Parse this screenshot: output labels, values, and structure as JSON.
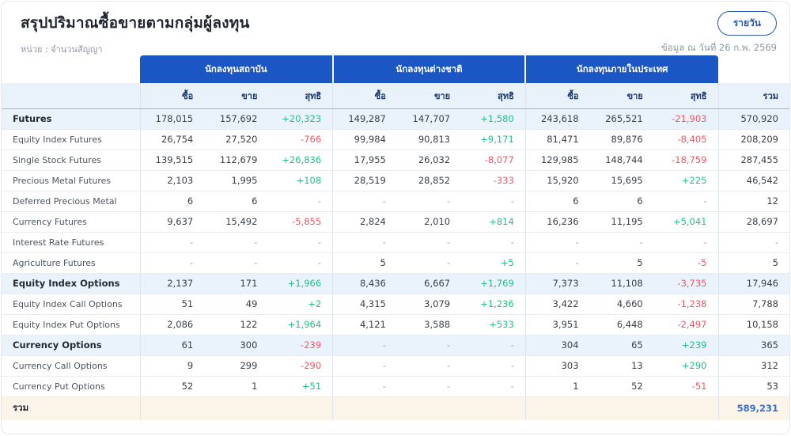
{
  "header": {
    "title": "สรุปปริมาณซื้อขายตามกลุ่มผู้ลงทุน",
    "unit_label": "หน่วย : จำนวนสัญญา",
    "frequency_button": "รายวัน",
    "as_of": "ข้อมูล ณ วันที่ 26 ก.พ. 2569"
  },
  "colors": {
    "header_blue": "#1a57c4",
    "subheader_bg": "#e9f1fb",
    "group_row_bg": "#eaf2fc",
    "total_row_bg": "#faf4e9",
    "positive_green": "#27bd89",
    "negative_red": "#ef5966",
    "total_value_blue": "#3b6cd1",
    "button_blue": "#2a57b0"
  },
  "table": {
    "groups": [
      "นักลงทุนสถาบัน",
      "นักลงทุนต่างชาติ",
      "นักลงทุนภายในประเทศ"
    ],
    "sub_headers": [
      "ซื้อ",
      "ขาย",
      "สุทธิ"
    ],
    "total_header": "รวม",
    "rows": [
      {
        "label": "Futures",
        "type": "group",
        "cells": [
          "178,015",
          "157,692",
          "+20,323",
          "149,287",
          "147,707",
          "+1,580",
          "243,618",
          "265,521",
          "-21,903",
          "570,920"
        ]
      },
      {
        "label": "Equity Index Futures",
        "type": "sub",
        "cells": [
          "26,754",
          "27,520",
          "-766",
          "99,984",
          "90,813",
          "+9,171",
          "81,471",
          "89,876",
          "-8,405",
          "208,209"
        ]
      },
      {
        "label": "Single Stock Futures",
        "type": "sub",
        "cells": [
          "139,515",
          "112,679",
          "+26,836",
          "17,955",
          "26,032",
          "-8,077",
          "129,985",
          "148,744",
          "-18,759",
          "287,455"
        ]
      },
      {
        "label": "Precious Metal Futures",
        "type": "sub",
        "cells": [
          "2,103",
          "1,995",
          "+108",
          "28,519",
          "28,852",
          "-333",
          "15,920",
          "15,695",
          "+225",
          "46,542"
        ]
      },
      {
        "label": "Deferred Precious Metal",
        "type": "sub",
        "cells": [
          "6",
          "6",
          "-",
          "-",
          "-",
          "-",
          "6",
          "6",
          "-",
          "12"
        ]
      },
      {
        "label": "Currency Futures",
        "type": "sub",
        "cells": [
          "9,637",
          "15,492",
          "-5,855",
          "2,824",
          "2,010",
          "+814",
          "16,236",
          "11,195",
          "+5,041",
          "28,697"
        ]
      },
      {
        "label": "Interest Rate Futures",
        "type": "sub",
        "cells": [
          "-",
          "-",
          "-",
          "-",
          "-",
          "-",
          "-",
          "-",
          "-",
          "-"
        ]
      },
      {
        "label": "Agriculture Futures",
        "type": "sub",
        "cells": [
          "-",
          "-",
          "-",
          "5",
          "-",
          "+5",
          "-",
          "5",
          "-5",
          "5"
        ]
      },
      {
        "label": "Equity Index Options",
        "type": "group",
        "cells": [
          "2,137",
          "171",
          "+1,966",
          "8,436",
          "6,667",
          "+1,769",
          "7,373",
          "11,108",
          "-3,735",
          "17,946"
        ]
      },
      {
        "label": "Equity Index Call Options",
        "type": "sub",
        "cells": [
          "51",
          "49",
          "+2",
          "4,315",
          "3,079",
          "+1,236",
          "3,422",
          "4,660",
          "-1,238",
          "7,788"
        ]
      },
      {
        "label": "Equity Index Put Options",
        "type": "sub",
        "cells": [
          "2,086",
          "122",
          "+1,964",
          "4,121",
          "3,588",
          "+533",
          "3,951",
          "6,448",
          "-2,497",
          "10,158"
        ]
      },
      {
        "label": "Currency Options",
        "type": "group",
        "cells": [
          "61",
          "300",
          "-239",
          "-",
          "-",
          "-",
          "304",
          "65",
          "+239",
          "365"
        ]
      },
      {
        "label": "Currency Call Options",
        "type": "sub",
        "cells": [
          "9",
          "299",
          "-290",
          "-",
          "-",
          "-",
          "303",
          "13",
          "+290",
          "312"
        ]
      },
      {
        "label": "Currency Put Options",
        "type": "sub",
        "cells": [
          "52",
          "1",
          "+51",
          "-",
          "-",
          "-",
          "1",
          "52",
          "-51",
          "53"
        ]
      }
    ],
    "total_row": {
      "label": "รวม",
      "cells": [
        "",
        "",
        "",
        "",
        "",
        "",
        "",
        "",
        "",
        "589,231"
      ]
    }
  }
}
